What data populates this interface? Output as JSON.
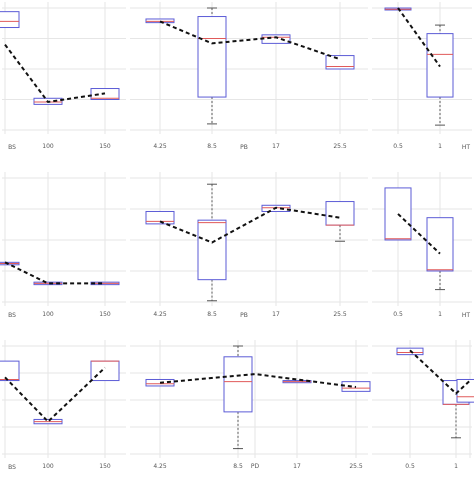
{
  "colors": {
    "box_edge": "#5b5bd6",
    "median": "#e05a5a",
    "trend": "#111111",
    "grid": "#e6e6e6",
    "whisker": "#555555"
  },
  "chart_data": [
    {
      "type": "box",
      "categories": [
        "",
        "100",
        "150"
      ],
      "xlabel": "BS",
      "ylim": [
        0,
        10
      ],
      "boxes": [
        {
          "min": 8.4,
          "q1": 8.4,
          "median": 8.9,
          "q3": 9.7,
          "max": 9.7
        },
        {
          "min": 2.1,
          "q1": 2.1,
          "median": 2.3,
          "q3": 2.6,
          "max": 2.6
        },
        {
          "min": 2.5,
          "q1": 2.5,
          "median": 2.6,
          "q3": 3.4,
          "max": 3.4
        }
      ],
      "trend": [
        7.0,
        2.3,
        3.0
      ]
    },
    {
      "type": "box",
      "categories": [
        "4.25",
        "8.5",
        "17",
        "25.5"
      ],
      "xlabel": "PB",
      "ylim": [
        0,
        10
      ],
      "boxes": [
        {
          "min": 8.8,
          "q1": 8.8,
          "median": 8.9,
          "q3": 9.1,
          "max": 9.1
        },
        {
          "min": 0.5,
          "q1": 2.7,
          "median": 7.5,
          "q3": 9.3,
          "max": 10.0
        },
        {
          "min": 7.1,
          "q1": 7.1,
          "median": 7.6,
          "q3": 7.8,
          "max": 7.8
        },
        {
          "min": 5.0,
          "q1": 5.0,
          "median": 5.2,
          "q3": 6.1,
          "max": 6.1
        }
      ],
      "trend": [
        8.9,
        7.1,
        7.6,
        5.8
      ]
    },
    {
      "type": "box",
      "categories": [
        "0.5",
        "1"
      ],
      "xlabel": "HT",
      "ylim": [
        0,
        10
      ],
      "boxes": [
        {
          "min": 9.9,
          "q1": 9.9,
          "median": 9.9,
          "q3": 10.0,
          "max": 10.0
        },
        {
          "min": 0.4,
          "q1": 2.7,
          "median": 6.2,
          "q3": 7.9,
          "max": 8.6
        }
      ],
      "trend": [
        10.0,
        5.2
      ]
    },
    {
      "type": "box",
      "categories": [
        "",
        "100",
        "150"
      ],
      "xlabel": "BS",
      "ylim": [
        0,
        10
      ],
      "boxes": [
        {
          "min": 3.0,
          "q1": 3.0,
          "median": 3.1,
          "q3": 3.2,
          "max": 3.2
        },
        {
          "min": 1.4,
          "q1": 1.4,
          "median": 1.5,
          "q3": 1.6,
          "max": 1.6
        },
        {
          "min": 1.4,
          "q1": 1.4,
          "median": 1.5,
          "q3": 1.6,
          "max": 1.6
        }
      ],
      "trend": [
        3.2,
        1.5,
        1.5
      ]
    },
    {
      "type": "box",
      "categories": [
        "4.25",
        "8.5",
        "17",
        "25.5"
      ],
      "xlabel": "PB",
      "ylim": [
        0,
        10
      ],
      "boxes": [
        {
          "min": 6.3,
          "q1": 6.3,
          "median": 6.5,
          "q3": 7.3,
          "max": 7.3
        },
        {
          "min": 0.1,
          "q1": 1.8,
          "median": 6.4,
          "q3": 6.6,
          "max": 9.5
        },
        {
          "min": 7.3,
          "q1": 7.3,
          "median": 7.6,
          "q3": 7.8,
          "max": 7.8
        },
        {
          "min": 4.9,
          "q1": 6.2,
          "median": 6.2,
          "q3": 8.1,
          "max": 8.1
        }
      ],
      "trend": [
        6.5,
        4.8,
        7.6,
        6.8
      ]
    },
    {
      "type": "box",
      "categories": [
        "0.5",
        "1"
      ],
      "xlabel": "HT",
      "ylim": [
        0,
        10
      ],
      "boxes": [
        {
          "min": 5.0,
          "q1": 5.0,
          "median": 5.1,
          "q3": 9.2,
          "max": 9.2
        },
        {
          "min": 1.0,
          "q1": 2.5,
          "median": 2.6,
          "q3": 6.8,
          "max": 6.8
        }
      ],
      "trend": [
        7.1,
        3.9
      ]
    },
    {
      "type": "box",
      "categories": [
        "",
        "100",
        "150"
      ],
      "xlabel": "BS",
      "ylim": [
        0,
        10
      ],
      "boxes": [
        {
          "min": 6.8,
          "q1": 6.8,
          "median": 6.9,
          "q3": 8.6,
          "max": 8.6
        },
        {
          "min": 2.8,
          "q1": 2.8,
          "median": 3.0,
          "q3": 3.2,
          "max": 3.2
        },
        {
          "min": 6.8,
          "q1": 6.8,
          "median": 8.6,
          "q3": 8.6,
          "max": 8.6
        }
      ],
      "trend": [
        7.1,
        3.0,
        8.0
      ]
    },
    {
      "type": "box",
      "categories": [
        "4.25",
        "8.5",
        "PD",
        "17",
        "25.5"
      ],
      "xlabel": "",
      "ylim": [
        0,
        10
      ],
      "boxes": [
        {
          "min": 6.3,
          "q1": 6.3,
          "median": 6.5,
          "q3": 6.9,
          "max": 6.9
        },
        {
          "min": 0.5,
          "q1": 3.9,
          "median": 6.7,
          "q3": 9.0,
          "max": 10.0
        },
        null,
        {
          "min": 6.6,
          "q1": 6.6,
          "median": 6.7,
          "q3": 6.8,
          "max": 6.8
        },
        {
          "min": 5.8,
          "q1": 5.8,
          "median": 6.1,
          "q3": 6.7,
          "max": 6.7
        }
      ],
      "trend": [
        6.6,
        null,
        7.4,
        null,
        6.2
      ]
    },
    {
      "type": "box",
      "categories": [
        "0.5",
        "1",
        ""
      ],
      "xlabel": "",
      "ylim": [
        0,
        10
      ],
      "boxes": [
        {
          "min": 9.2,
          "q1": 9.2,
          "median": 9.4,
          "q3": 9.8,
          "max": 9.8
        },
        {
          "min": 1.5,
          "q1": 4.6,
          "median": 4.6,
          "q3": 6.8,
          "max": 6.8
        },
        {
          "min": 4.8,
          "q1": 4.8,
          "median": 5.3,
          "q3": 6.9,
          "max": 6.9
        }
      ],
      "trend": [
        9.6,
        5.6,
        6.8
      ]
    }
  ]
}
